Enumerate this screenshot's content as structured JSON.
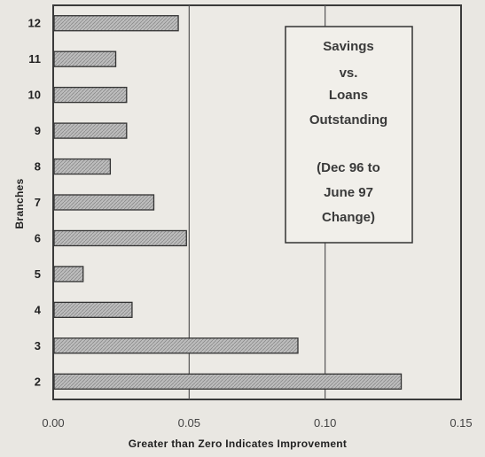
{
  "chart_data": {
    "type": "bar",
    "orientation": "horizontal",
    "categories": [
      "2",
      "3",
      "4",
      "5",
      "6",
      "7",
      "8",
      "9",
      "10",
      "11",
      "12"
    ],
    "values": [
      0.128,
      0.09,
      0.029,
      0.011,
      0.049,
      0.037,
      0.021,
      0.027,
      0.027,
      0.023,
      0.046
    ],
    "xlim": [
      0,
      0.15
    ],
    "xticks": [
      "0.00",
      "0.05",
      "0.10",
      "0.15"
    ],
    "xlabel": "Greater than Zero Indicates Improvement",
    "ylabel": "Branches",
    "annotation": [
      "Savings",
      "vs.",
      "Loans",
      "Outstanding",
      "",
      "(Dec 96 to",
      "June 97",
      "Change)"
    ],
    "grid": "vertical",
    "colors": {
      "bar": "#bdbdbd",
      "background": "#e9e7e2",
      "line": "#333333"
    }
  }
}
